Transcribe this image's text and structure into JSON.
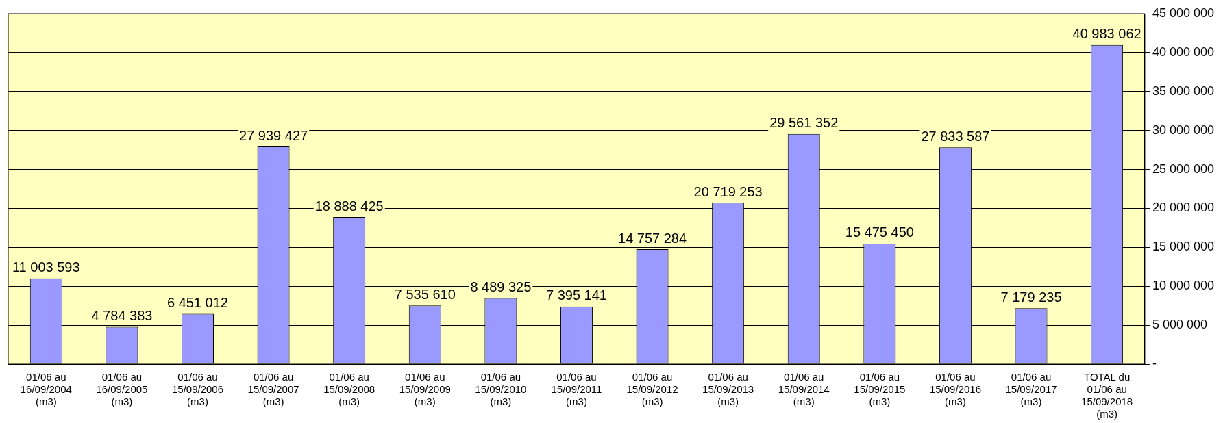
{
  "chart_data": {
    "type": "bar",
    "categories": [
      "01/06 au\n16/09/2004\n(m3)",
      "01/06 au\n16/09/2005\n(m3)",
      "01/06 au\n15/09/2006\n(m3)",
      "01/06 au\n15/09/2007\n(m3)",
      "01/06 au\n15/09/2008\n(m3)",
      "01/06 au\n15/09/2009\n(m3)",
      "01/06 au\n15/09/2010\n(m3)",
      "01/06 au\n15/09/2011\n(m3)",
      "01/06 au\n15/09/2012\n(m3)",
      "01/06 au\n15/09/2013\n(m3)",
      "01/06 au\n15/09/2014\n(m3)",
      "01/06 au\n15/09/2015\n(m3)",
      "01/06 au\n15/09/2016\n(m3)",
      "01/06 au\n15/09/2017\n(m3)",
      "TOTAL du\n01/06 au\n15/09/2018\n(m3)"
    ],
    "values": [
      11003593,
      4784383,
      6451012,
      27939427,
      18888425,
      7535610,
      8489325,
      7395141,
      14757284,
      20719253,
      29561352,
      15475450,
      27833587,
      7179235,
      40983062
    ],
    "value_labels": [
      "11 003 593",
      "4 784 383",
      "6 451 012",
      "27 939 427",
      "18 888 425",
      "7 535 610",
      "8 489 325",
      "7 395 141",
      "14 757 284",
      "20 719 253",
      "29 561 352",
      "15 475 450",
      "27 833 587",
      "7 179 235",
      "40 983 062"
    ],
    "color": "#9999ff",
    "ylim": [
      0,
      45000000
    ],
    "yticks": [
      {
        "value": 0,
        "label": "-"
      },
      {
        "value": 5000000,
        "label": "5 000 000"
      },
      {
        "value": 10000000,
        "label": "10 000 000"
      },
      {
        "value": 15000000,
        "label": "15 000 000"
      },
      {
        "value": 20000000,
        "label": "20 000 000"
      },
      {
        "value": 25000000,
        "label": "25 000 000"
      },
      {
        "value": 30000000,
        "label": "30 000 000"
      },
      {
        "value": 35000000,
        "label": "35 000 000"
      },
      {
        "value": 40000000,
        "label": "40 000 000"
      },
      {
        "value": 45000000,
        "label": "45 000 000"
      }
    ],
    "grid": "y"
  }
}
